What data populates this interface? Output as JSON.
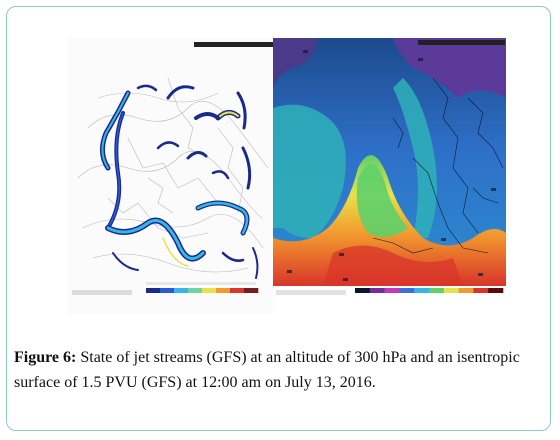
{
  "figure": {
    "label": "Figure 6:",
    "caption": "State of jet streams (GFS) at an altitude of 300 hPa and an isentropic surface of 1.5 PVU (GFS) at 12:00 am on July 13, 2016."
  },
  "left_map": {
    "corner_label": "",
    "colorbar_colors": [
      "#1a2a8a",
      "#2b5ad6",
      "#35b5e8",
      "#6fd3a8",
      "#e8e24a",
      "#f29a2e",
      "#d83a2a",
      "#7a1a1a"
    ]
  },
  "right_map": {
    "colorbar_colors": [
      "#0e1430",
      "#7a2a9a",
      "#c23ab8",
      "#3c6ee0",
      "#35b5e8",
      "#5fd06a",
      "#e8e24a",
      "#f29a2e",
      "#d8352a",
      "#5a0a0a"
    ]
  },
  "colors": {
    "frame_border": "#8dc8cf",
    "jet_dark": "#1a2a8a",
    "jet_mid": "#35b5e8",
    "jet_core": "#e8e24a"
  }
}
